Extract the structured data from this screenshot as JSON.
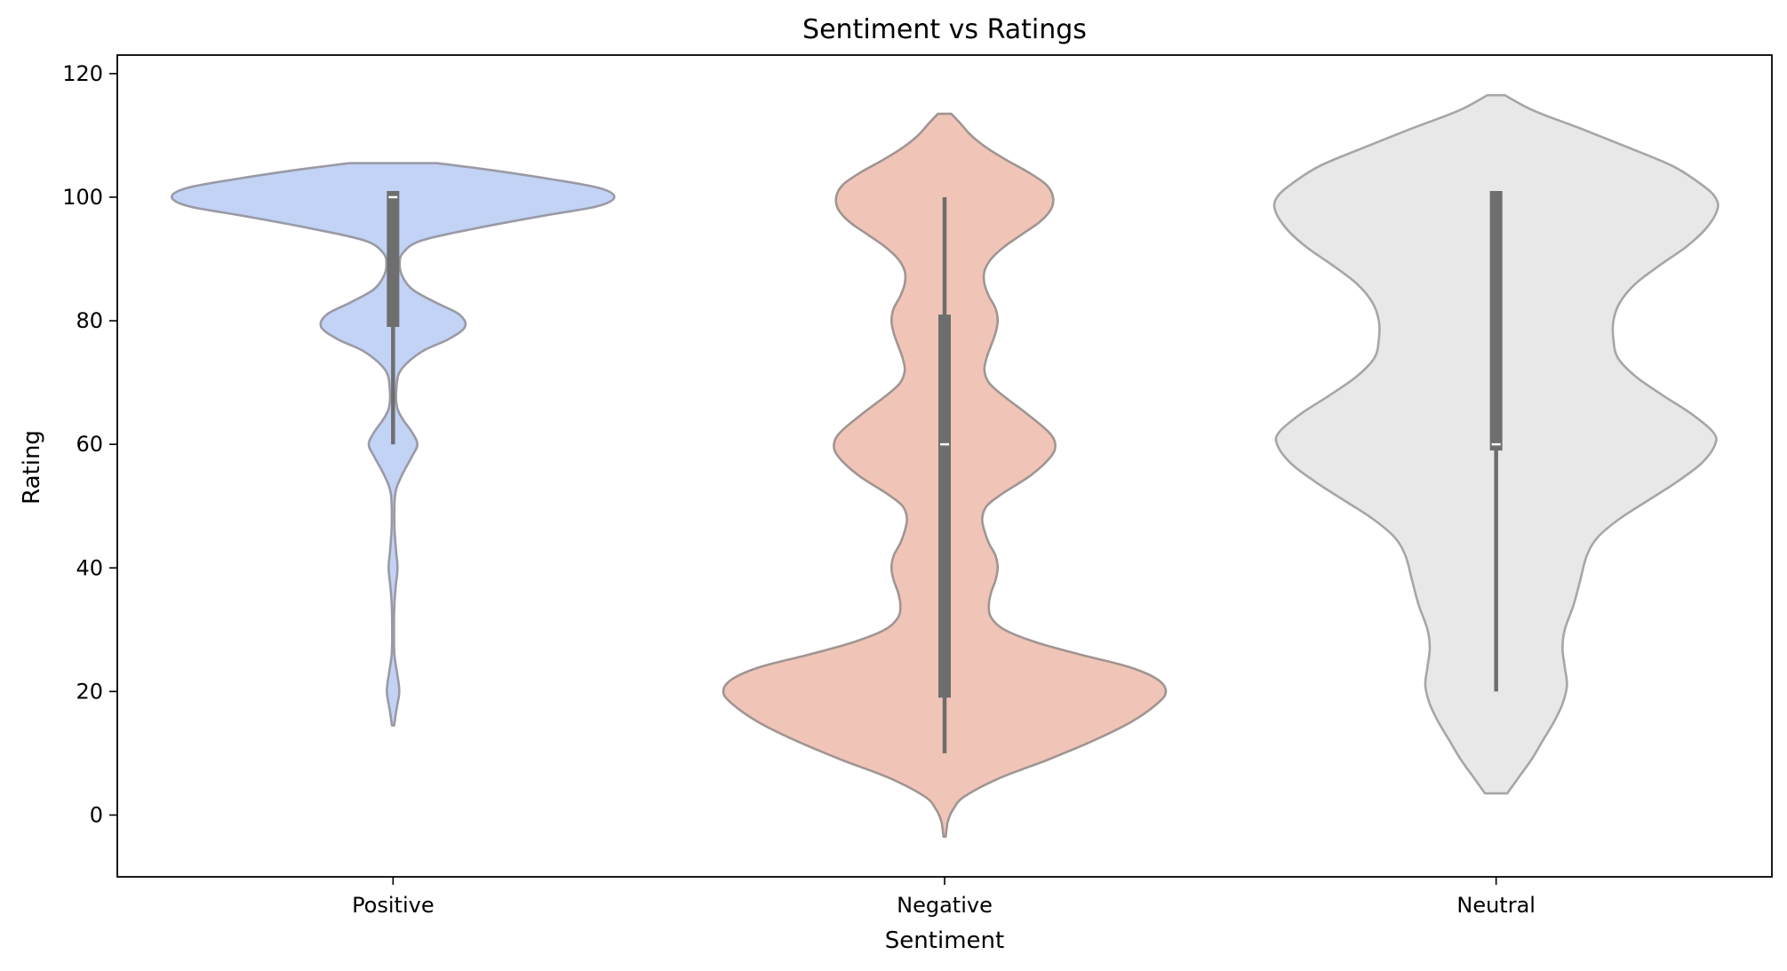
{
  "chart_data": {
    "type": "violin",
    "title": "Sentiment vs Ratings",
    "xlabel": "Sentiment",
    "ylabel": "Rating",
    "ylim": [
      -10,
      123
    ],
    "yticks": [
      0,
      20,
      40,
      60,
      80,
      100,
      120
    ],
    "categories": [
      "Positive",
      "Negative",
      "Neutral"
    ],
    "violins": [
      {
        "name": "Positive",
        "color": "#c2d3f6",
        "edge_color": "#9a9aa5",
        "box": {
          "q1": 79,
          "median": 100,
          "q3": 101,
          "whisker_low": 60,
          "whisker_high": 101
        },
        "density": [
          [
            14.5,
            0.005
          ],
          [
            17,
            0.015
          ],
          [
            20,
            0.028
          ],
          [
            23,
            0.018
          ],
          [
            26,
            0.006
          ],
          [
            30,
            0.004
          ],
          [
            34,
            0.006
          ],
          [
            37,
            0.012
          ],
          [
            40,
            0.02
          ],
          [
            43,
            0.013
          ],
          [
            47,
            0.006
          ],
          [
            52,
            0.01
          ],
          [
            55,
            0.04
          ],
          [
            58,
            0.085
          ],
          [
            60,
            0.11
          ],
          [
            62,
            0.085
          ],
          [
            64,
            0.045
          ],
          [
            66,
            0.018
          ],
          [
            69,
            0.015
          ],
          [
            72,
            0.035
          ],
          [
            75,
            0.13
          ],
          [
            77,
            0.25
          ],
          [
            79,
            0.325
          ],
          [
            81,
            0.3
          ],
          [
            83,
            0.19
          ],
          [
            85,
            0.09
          ],
          [
            87,
            0.045
          ],
          [
            89,
            0.03
          ],
          [
            91,
            0.045
          ],
          [
            93,
            0.13
          ],
          [
            95,
            0.38
          ],
          [
            97,
            0.68
          ],
          [
            98.5,
            0.92
          ],
          [
            100,
            1.0
          ],
          [
            101.5,
            0.93
          ],
          [
            103,
            0.7
          ],
          [
            104.5,
            0.42
          ],
          [
            105.5,
            0.2
          ]
        ]
      },
      {
        "name": "Negative",
        "color": "#f0c5b8",
        "edge_color": "#a09592",
        "box": {
          "q1": 19,
          "median": 60,
          "q3": 81,
          "whisker_low": 10,
          "whisker_high": 100
        },
        "density": [
          [
            -3.5,
            0.005
          ],
          [
            -1,
            0.015
          ],
          [
            1,
            0.04
          ],
          [
            3,
            0.09
          ],
          [
            6,
            0.25
          ],
          [
            9,
            0.47
          ],
          [
            12,
            0.67
          ],
          [
            15,
            0.84
          ],
          [
            18,
            0.96
          ],
          [
            20,
            1.0
          ],
          [
            22,
            0.96
          ],
          [
            24,
            0.83
          ],
          [
            26,
            0.61
          ],
          [
            28,
            0.41
          ],
          [
            30,
            0.27
          ],
          [
            32,
            0.21
          ],
          [
            34,
            0.2
          ],
          [
            36,
            0.21
          ],
          [
            38,
            0.23
          ],
          [
            40,
            0.24
          ],
          [
            42,
            0.23
          ],
          [
            44,
            0.2
          ],
          [
            46,
            0.18
          ],
          [
            48,
            0.17
          ],
          [
            50,
            0.19
          ],
          [
            52,
            0.26
          ],
          [
            55,
            0.39
          ],
          [
            58,
            0.48
          ],
          [
            60,
            0.5
          ],
          [
            62,
            0.47
          ],
          [
            65,
            0.37
          ],
          [
            68,
            0.26
          ],
          [
            70,
            0.2
          ],
          [
            72,
            0.18
          ],
          [
            74,
            0.19
          ],
          [
            76,
            0.21
          ],
          [
            78,
            0.23
          ],
          [
            80,
            0.24
          ],
          [
            82,
            0.23
          ],
          [
            84,
            0.2
          ],
          [
            86,
            0.18
          ],
          [
            88,
            0.18
          ],
          [
            90,
            0.21
          ],
          [
            92,
            0.27
          ],
          [
            94,
            0.35
          ],
          [
            96,
            0.43
          ],
          [
            98,
            0.48
          ],
          [
            100,
            0.49
          ],
          [
            102,
            0.46
          ],
          [
            104,
            0.38
          ],
          [
            106,
            0.28
          ],
          [
            108,
            0.19
          ],
          [
            110,
            0.12
          ],
          [
            112,
            0.07
          ],
          [
            113.5,
            0.03
          ]
        ]
      },
      {
        "name": "Neutral",
        "color": "#e8e8e8",
        "edge_color": "#a6a6a6",
        "box": {
          "q1": 59,
          "median": 60,
          "q3": 101,
          "whisker_low": 20,
          "whisker_high": 101
        },
        "density": [
          [
            3.5,
            0.05
          ],
          [
            6,
            0.1
          ],
          [
            9,
            0.16
          ],
          [
            12,
            0.21
          ],
          [
            15,
            0.26
          ],
          [
            18,
            0.3
          ],
          [
            21,
            0.32
          ],
          [
            24,
            0.31
          ],
          [
            27,
            0.3
          ],
          [
            30,
            0.31
          ],
          [
            34,
            0.35
          ],
          [
            38,
            0.38
          ],
          [
            42,
            0.41
          ],
          [
            45,
            0.46
          ],
          [
            48,
            0.56
          ],
          [
            51,
            0.69
          ],
          [
            54,
            0.82
          ],
          [
            57,
            0.93
          ],
          [
            60,
            0.99
          ],
          [
            62,
            0.98
          ],
          [
            65,
            0.88
          ],
          [
            68,
            0.75
          ],
          [
            71,
            0.63
          ],
          [
            74,
            0.55
          ],
          [
            77,
            0.53
          ],
          [
            80,
            0.53
          ],
          [
            83,
            0.56
          ],
          [
            86,
            0.63
          ],
          [
            89,
            0.74
          ],
          [
            92,
            0.86
          ],
          [
            95,
            0.95
          ],
          [
            98,
            1.0
          ],
          [
            100,
            0.99
          ],
          [
            102,
            0.93
          ],
          [
            105,
            0.8
          ],
          [
            108,
            0.6
          ],
          [
            111,
            0.39
          ],
          [
            114,
            0.17
          ],
          [
            116.5,
            0.04
          ]
        ]
      }
    ]
  }
}
